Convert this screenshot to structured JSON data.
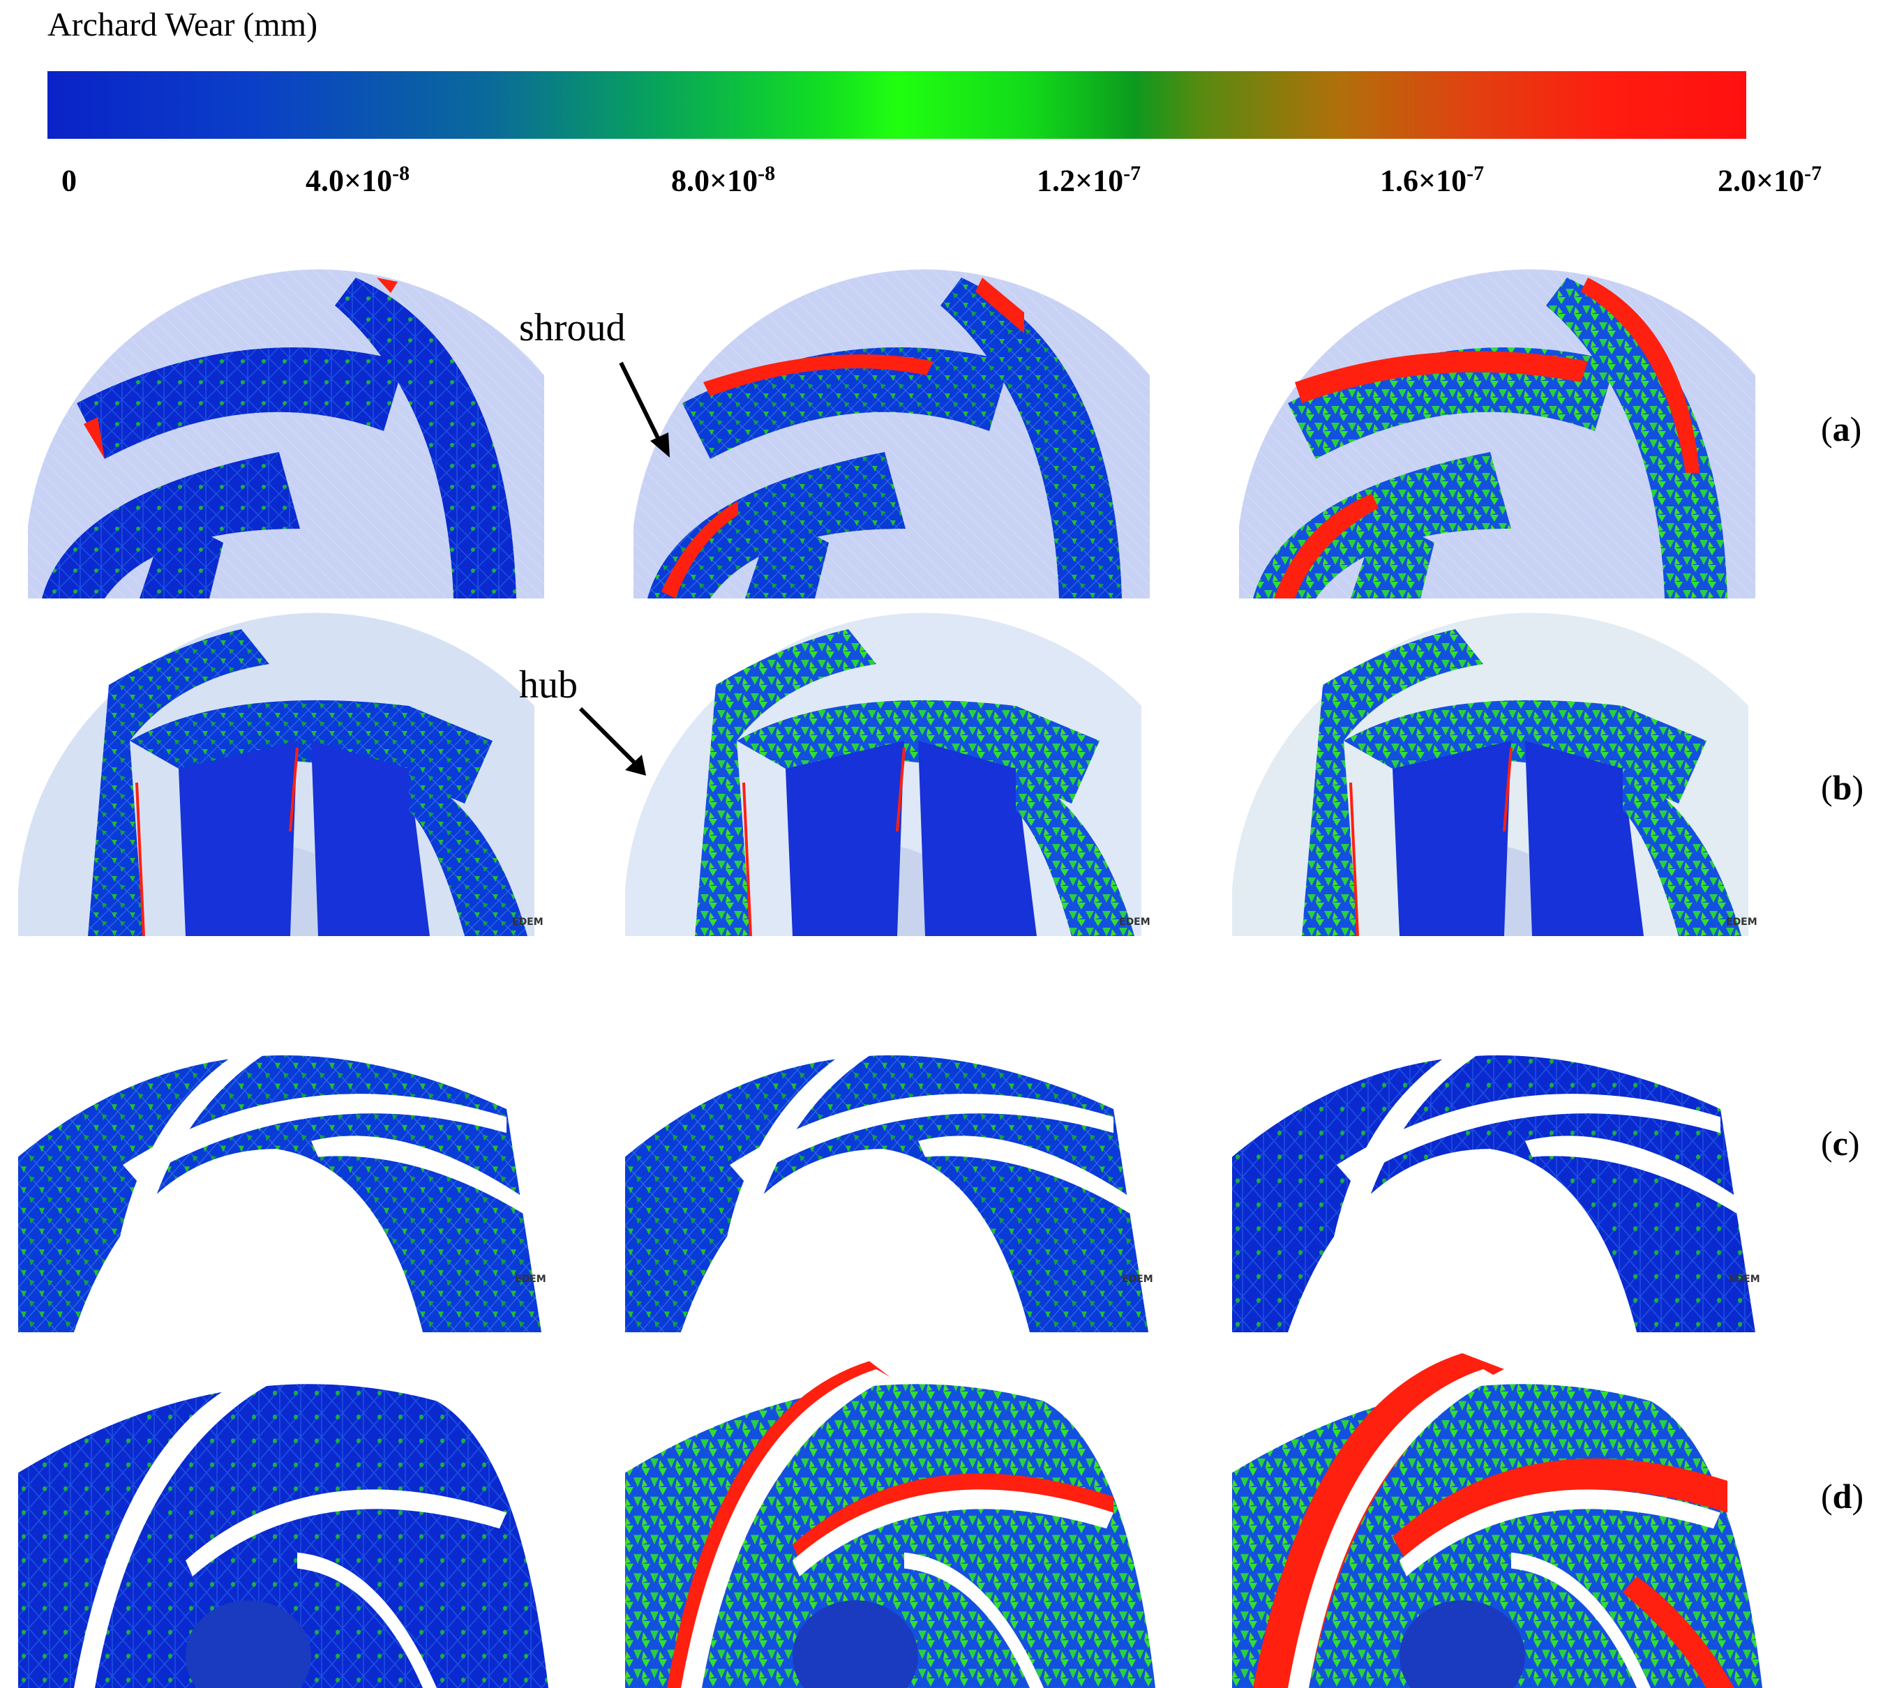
{
  "colorbar": {
    "title": "Archard Wear (mm)",
    "ticks": [
      {
        "base": "0",
        "exp": ""
      },
      {
        "base": "4.0×10",
        "exp": "-8"
      },
      {
        "base": "8.0×10",
        "exp": "-8"
      },
      {
        "base": "1.2×10",
        "exp": "-7"
      },
      {
        "base": "1.6×10",
        "exp": "-7"
      },
      {
        "base": "2.0×10",
        "exp": "-7"
      }
    ],
    "colors": [
      "#0a22c8",
      "#0a6a9a",
      "#20ff10",
      "#0c9a1e",
      "#b0700a",
      "#ff1010"
    ]
  },
  "annotations": {
    "shroud": "shroud",
    "hub": "hub"
  },
  "rows": [
    {
      "label_open": "(",
      "letter": "a",
      "label_close": ")"
    },
    {
      "label_open": "(",
      "letter": "b",
      "label_close": ")"
    },
    {
      "label_open": "(",
      "letter": "c",
      "label_close": ")"
    },
    {
      "label_open": "(",
      "letter": "d",
      "label_close": ")"
    }
  ],
  "watermark": "EDEM"
}
